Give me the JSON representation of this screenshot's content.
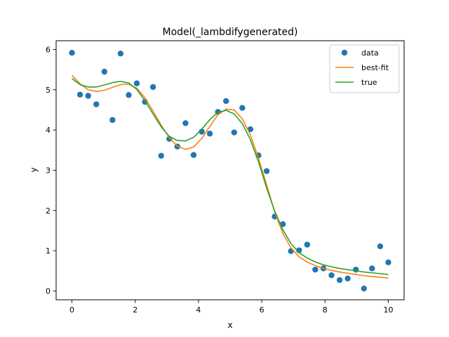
{
  "chart_data": {
    "type": "line",
    "title": "Model(_lambdifygenerated)",
    "xlabel": "x",
    "ylabel": "y",
    "xlim": [
      -0.5,
      10.5
    ],
    "ylim": [
      -0.22,
      6.22
    ],
    "xticks": [
      0,
      2,
      4,
      6,
      8,
      10
    ],
    "yticks": [
      0,
      1,
      2,
      3,
      4,
      5,
      6
    ],
    "grid": false,
    "legend_position": "top-right",
    "series": [
      {
        "name": "data",
        "kind": "scatter",
        "color": "#1f77b4",
        "x": [
          0,
          0.256,
          0.513,
          0.769,
          1.026,
          1.282,
          1.538,
          1.795,
          2.051,
          2.308,
          2.564,
          2.821,
          3.077,
          3.333,
          3.59,
          3.846,
          4.103,
          4.359,
          4.615,
          4.872,
          5.128,
          5.385,
          5.641,
          5.897,
          6.154,
          6.41,
          6.667,
          6.923,
          7.179,
          7.436,
          7.692,
          7.949,
          8.205,
          8.462,
          8.718,
          8.974,
          9.231,
          9.487,
          9.744,
          10.0
        ],
        "y": [
          5.92,
          4.88,
          4.85,
          4.64,
          5.45,
          4.25,
          5.9,
          4.87,
          5.16,
          4.7,
          5.07,
          3.36,
          3.78,
          3.59,
          4.17,
          3.38,
          3.96,
          3.91,
          4.45,
          4.72,
          3.94,
          4.55,
          4.02,
          3.37,
          2.98,
          1.85,
          1.66,
          0.99,
          1.01,
          1.15,
          0.53,
          0.56,
          0.39,
          0.27,
          0.31,
          0.53,
          0.06,
          0.56,
          1.11,
          0.71
        ]
      },
      {
        "name": "best-fit",
        "kind": "line",
        "color": "#ff7f0e",
        "x": [
          0,
          0.256,
          0.513,
          0.769,
          1.026,
          1.282,
          1.538,
          1.795,
          2.051,
          2.308,
          2.564,
          2.821,
          3.077,
          3.333,
          3.59,
          3.846,
          4.103,
          4.359,
          4.615,
          4.872,
          5.128,
          5.385,
          5.641,
          5.897,
          6.154,
          6.41,
          6.667,
          6.923,
          7.179,
          7.436,
          7.692,
          7.949,
          8.205,
          8.462,
          8.718,
          8.974,
          9.231,
          9.487,
          9.744,
          10.0
        ],
        "y": [
          5.36,
          5.15,
          5.0,
          4.96,
          4.99,
          5.06,
          5.13,
          5.14,
          5.04,
          4.8,
          4.47,
          4.12,
          3.81,
          3.6,
          3.52,
          3.58,
          3.79,
          4.09,
          4.38,
          4.52,
          4.5,
          4.28,
          3.88,
          3.3,
          2.64,
          1.96,
          1.43,
          1.07,
          0.85,
          0.72,
          0.63,
          0.56,
          0.51,
          0.47,
          0.44,
          0.41,
          0.38,
          0.36,
          0.34,
          0.32
        ]
      },
      {
        "name": "true",
        "kind": "line",
        "color": "#2ca02c",
        "x": [
          0,
          0.256,
          0.513,
          0.769,
          1.026,
          1.282,
          1.538,
          1.795,
          2.051,
          2.308,
          2.564,
          2.821,
          3.077,
          3.333,
          3.59,
          3.846,
          4.103,
          4.359,
          4.615,
          4.872,
          5.128,
          5.385,
          5.641,
          5.897,
          6.154,
          6.41,
          6.667,
          6.923,
          7.179,
          7.436,
          7.692,
          7.949,
          8.205,
          8.462,
          8.718,
          8.974,
          9.231,
          9.487,
          9.744,
          10.0
        ],
        "y": [
          5.28,
          5.13,
          5.07,
          5.07,
          5.12,
          5.18,
          5.21,
          5.17,
          5.01,
          4.73,
          4.4,
          4.08,
          3.84,
          3.74,
          3.73,
          3.82,
          4.02,
          4.26,
          4.44,
          4.49,
          4.4,
          4.16,
          3.76,
          3.21,
          2.56,
          1.98,
          1.52,
          1.18,
          0.95,
          0.82,
          0.72,
          0.65,
          0.6,
          0.56,
          0.53,
          0.5,
          0.47,
          0.45,
          0.43,
          0.41
        ]
      }
    ]
  }
}
